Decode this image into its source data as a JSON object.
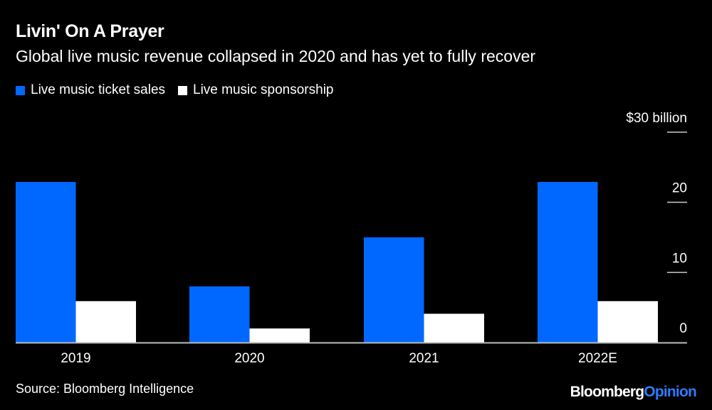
{
  "chart_data": {
    "type": "bar",
    "title": "Livin' On A Prayer",
    "subtitle": "Global live music revenue collapsed in 2020 and has yet to fully recover",
    "categories": [
      "2019",
      "2020",
      "2021",
      "2022E"
    ],
    "series": [
      {
        "name": "Live music ticket sales",
        "values": [
          22.9,
          8.0,
          15.0,
          22.9
        ],
        "color": "#0068ff"
      },
      {
        "name": "Live music sponsorship",
        "values": [
          5.9,
          2.0,
          4.1,
          5.9
        ],
        "color": "#ffffff"
      }
    ],
    "ylim": [
      0,
      30
    ],
    "yticks": [
      0,
      10,
      20,
      30
    ],
    "ytick_labels": [
      "0",
      "10",
      "20",
      "$30 billion"
    ],
    "yaxis_position": "right",
    "grid": false,
    "legend_position": "top-left",
    "source": "Source: Bloomberg Intelligence"
  },
  "logo": {
    "part1": "Bloomberg",
    "part2": "Opinion"
  }
}
